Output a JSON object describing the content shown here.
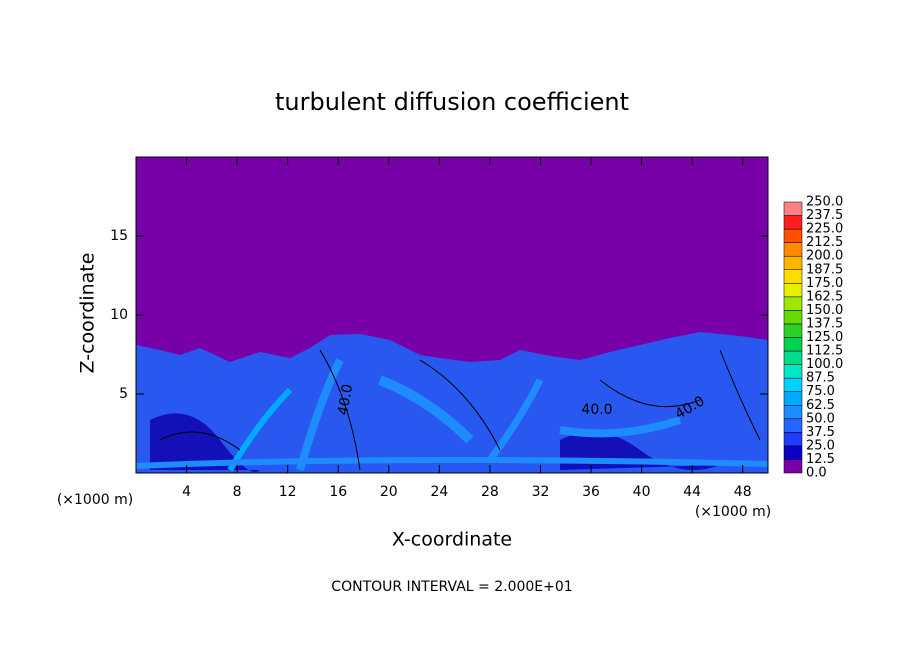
{
  "chart_data": {
    "type": "contour",
    "title": "turbulent diffusion coefficient",
    "xlabel": "X-coordinate",
    "ylabel": "Z-coordinate",
    "xunit": "(×1000 m)",
    "yunit": "(×1000 m)",
    "footer": "CONTOUR INTERVAL = 2.000E+01",
    "contour_labels": [
      "40.0",
      "40.0",
      "40.0"
    ],
    "xlim": [
      0,
      50
    ],
    "xticks": [
      4,
      8,
      12,
      16,
      20,
      24,
      28,
      32,
      36,
      40,
      44,
      48
    ],
    "ylim": [
      0,
      20
    ],
    "yticks": [
      5,
      10,
      15
    ],
    "colorbar": {
      "levels": [
        {
          "value": 0,
          "label": "0.0"
        },
        {
          "value": 12.5,
          "label": "12.5"
        },
        {
          "value": 25,
          "label": "25.0"
        },
        {
          "value": 37.5,
          "label": "37.5"
        },
        {
          "value": 50,
          "label": "50.0"
        },
        {
          "value": 62.5,
          "label": "62.5"
        },
        {
          "value": 75,
          "label": "75.0"
        },
        {
          "value": 87.5,
          "label": "87.5"
        },
        {
          "value": 100,
          "label": "100.0"
        },
        {
          "value": 112.5,
          "label": "112.5"
        },
        {
          "value": 125,
          "label": "125.0"
        },
        {
          "value": 137.5,
          "label": "137.5"
        },
        {
          "value": 150,
          "label": "150.0"
        },
        {
          "value": 162.5,
          "label": "162.5"
        },
        {
          "value": 175,
          "label": "175.0"
        },
        {
          "value": 187.5,
          "label": "187.5"
        },
        {
          "value": 200,
          "label": "200.0"
        },
        {
          "value": 212.5,
          "label": "212.5"
        },
        {
          "value": 225,
          "label": "225.0"
        },
        {
          "value": 237.5,
          "label": "237.5"
        },
        {
          "value": 250,
          "label": "250.0"
        }
      ],
      "colors": [
        "#7800a8",
        "#0a00c8",
        "#1e3cff",
        "#2864ff",
        "#1e8cff",
        "#00aaff",
        "#00d2ff",
        "#00e6c8",
        "#00dc8c",
        "#00d250",
        "#28d228",
        "#64dc00",
        "#a0e600",
        "#e6f000",
        "#ffdc00",
        "#ffb400",
        "#ff8c00",
        "#ff5000",
        "#ff1e1e",
        "#ff8080"
      ]
    }
  }
}
